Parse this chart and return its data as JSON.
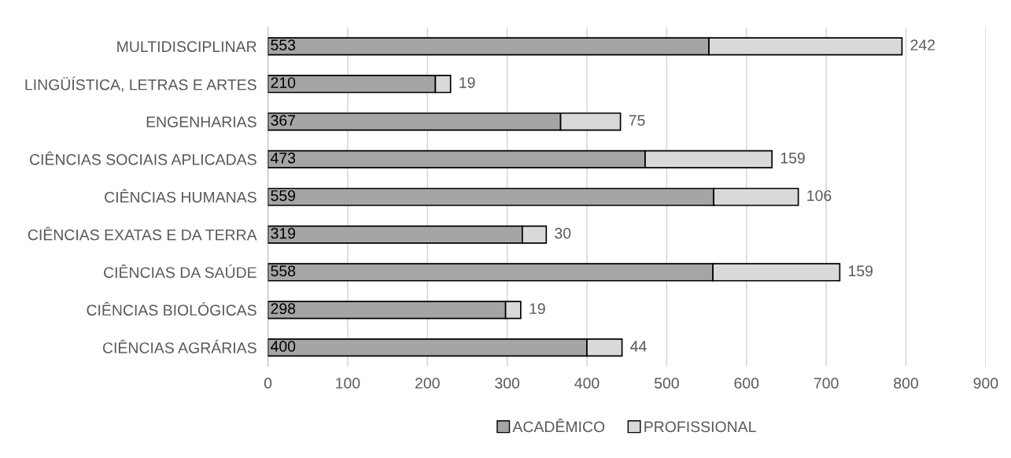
{
  "chart_data": {
    "type": "bar",
    "orientation": "horizontal",
    "stacked": true,
    "categories": [
      "MULTIDISCIPLINAR",
      "LINGÜÍSTICA, LETRAS E ARTES",
      "ENGENHARIAS",
      "CIÊNCIAS SOCIAIS APLICADAS",
      "CIÊNCIAS HUMANAS",
      "CIÊNCIAS EXATAS E DA TERRA",
      "CIÊNCIAS DA SAÚDE",
      "CIÊNCIAS BIOLÓGICAS",
      "CIÊNCIAS AGRÁRIAS"
    ],
    "series": [
      {
        "name": "ACADÊMICO",
        "color": "#a5a5a5",
        "values": [
          553,
          210,
          367,
          473,
          559,
          319,
          558,
          298,
          400
        ]
      },
      {
        "name": "PROFISSIONAL",
        "color": "#d9d9d9",
        "values": [
          242,
          19,
          75,
          159,
          106,
          30,
          159,
          19,
          44
        ]
      }
    ],
    "xlim": [
      0,
      900
    ],
    "xticks": [
      0,
      100,
      200,
      300,
      400,
      500,
      600,
      700,
      800,
      900
    ],
    "grid": "x",
    "legend": "bottom",
    "data_labels": true
  }
}
